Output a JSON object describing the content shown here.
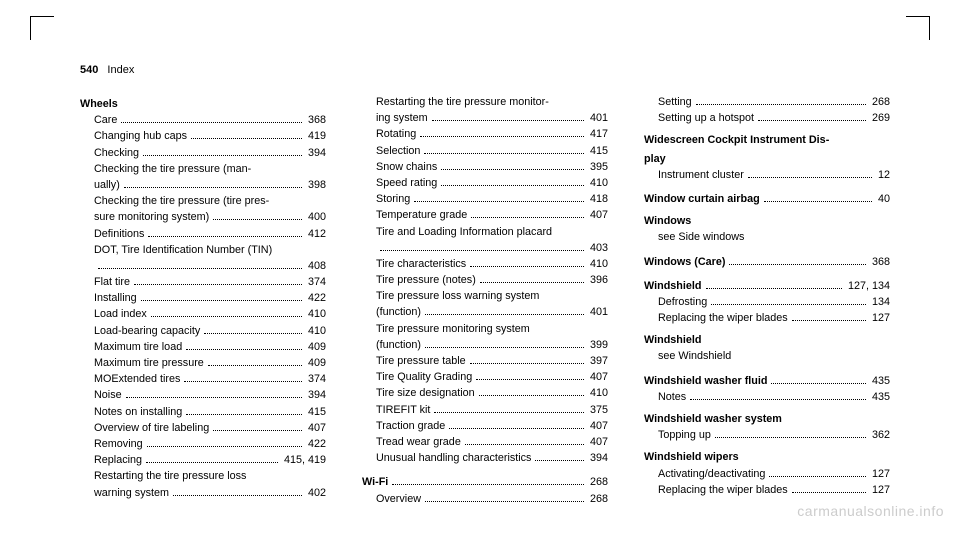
{
  "header": {
    "pagenum": "540",
    "section": "Index"
  },
  "watermark": "carmanualsonline.info",
  "col1": [
    {
      "type": "heading",
      "text": "Wheels"
    },
    {
      "type": "entry",
      "label": "Care",
      "page": "368"
    },
    {
      "type": "entry",
      "label": "Changing hub caps",
      "page": "419"
    },
    {
      "type": "entry",
      "label": "Checking",
      "page": "394"
    },
    {
      "type": "wrap2",
      "l1": "Checking the tire pressure (man-",
      "l2": "ually)",
      "page": "398"
    },
    {
      "type": "wrap2",
      "l1": "Checking the tire pressure (tire pres-",
      "l2": "sure monitoring system)",
      "page": "400"
    },
    {
      "type": "entry",
      "label": "Definitions",
      "page": "412"
    },
    {
      "type": "wrap2",
      "l1": "DOT, Tire Identification Number (TIN)",
      "l2": "",
      "page": "408"
    },
    {
      "type": "entry",
      "label": "Flat tire",
      "page": "374"
    },
    {
      "type": "entry",
      "label": "Installing",
      "page": "422"
    },
    {
      "type": "entry",
      "label": "Load index",
      "page": "410"
    },
    {
      "type": "entry",
      "label": "Load-bearing capacity",
      "page": "410"
    },
    {
      "type": "entry",
      "label": "Maximum tire load",
      "page": "409"
    },
    {
      "type": "entry",
      "label": "Maximum tire pressure",
      "page": "409"
    },
    {
      "type": "entry",
      "label": "MOExtended tires",
      "page": "374"
    },
    {
      "type": "entry",
      "label": "Noise",
      "page": "394"
    },
    {
      "type": "entry",
      "label": "Notes on installing",
      "page": "415"
    },
    {
      "type": "entry",
      "label": "Overview of tire labeling",
      "page": "407"
    },
    {
      "type": "entry",
      "label": "Removing",
      "page": "422"
    },
    {
      "type": "entry",
      "label": "Replacing",
      "page": "415, 419"
    },
    {
      "type": "wrap2",
      "l1": "Restarting the tire pressure loss",
      "l2": "warning system",
      "page": "402"
    }
  ],
  "col2": [
    {
      "type": "wrap2top",
      "l1": "Restarting the tire pressure monitor-",
      "l2": "ing system",
      "page": "401"
    },
    {
      "type": "entry",
      "label": "Rotating",
      "page": "417"
    },
    {
      "type": "entry",
      "label": "Selection",
      "page": "415"
    },
    {
      "type": "entry",
      "label": "Snow chains",
      "page": "395"
    },
    {
      "type": "entry",
      "label": "Speed rating",
      "page": "410"
    },
    {
      "type": "entry",
      "label": "Storing",
      "page": "418"
    },
    {
      "type": "entry",
      "label": "Temperature grade",
      "page": "407"
    },
    {
      "type": "wrap2",
      "l1": "Tire and Loading Information placard",
      "l2": "",
      "page": "403"
    },
    {
      "type": "entry",
      "label": "Tire characteristics",
      "page": "410"
    },
    {
      "type": "entry",
      "label": "Tire pressure (notes)",
      "page": "396"
    },
    {
      "type": "wrap2",
      "l1": "Tire pressure loss warning system",
      "l2": "(function)",
      "page": "401"
    },
    {
      "type": "wrap2",
      "l1": "Tire pressure monitoring system",
      "l2": "(function)",
      "page": "399"
    },
    {
      "type": "entry",
      "label": "Tire pressure table",
      "page": "397"
    },
    {
      "type": "entry",
      "label": "Tire Quality Grading",
      "page": "407"
    },
    {
      "type": "entry",
      "label": "Tire size designation",
      "page": "410"
    },
    {
      "type": "entry",
      "label": "TIREFIT kit",
      "page": "375"
    },
    {
      "type": "entry",
      "label": "Traction grade",
      "page": "407"
    },
    {
      "type": "entry",
      "label": "Tread wear grade",
      "page": "407"
    },
    {
      "type": "entry",
      "label": "Unusual handling characteristics",
      "page": "394"
    },
    {
      "type": "heading-entry",
      "label": "Wi-Fi",
      "page": "268"
    },
    {
      "type": "entry",
      "label": "Overview",
      "page": "268"
    }
  ],
  "col3": [
    {
      "type": "entry-top",
      "label": "Setting",
      "page": "268"
    },
    {
      "type": "entry",
      "label": "Setting up a hotspot",
      "page": "269"
    },
    {
      "type": "heading-wrap",
      "l1": "Widescreen Cockpit Instrument Dis-",
      "l2": "play"
    },
    {
      "type": "entry",
      "label": "Instrument cluster",
      "page": "12"
    },
    {
      "type": "heading-entry",
      "label": "Window curtain airbag",
      "page": "40"
    },
    {
      "type": "heading",
      "text": "Windows"
    },
    {
      "type": "see",
      "text": "see Side windows"
    },
    {
      "type": "heading-entry",
      "label": "Windows (Care)",
      "page": "368"
    },
    {
      "type": "heading-entry",
      "label": "Windshield",
      "page": "127, 134"
    },
    {
      "type": "entry",
      "label": "Defrosting",
      "page": "134"
    },
    {
      "type": "entry",
      "label": "Replacing the wiper blades",
      "page": "127"
    },
    {
      "type": "heading",
      "text": "Windshield"
    },
    {
      "type": "see",
      "text": "see Windshield"
    },
    {
      "type": "heading-entry",
      "label": "Windshield washer fluid",
      "page": "435"
    },
    {
      "type": "entry",
      "label": "Notes",
      "page": "435"
    },
    {
      "type": "heading",
      "text": "Windshield washer system"
    },
    {
      "type": "entry",
      "label": "Topping up",
      "page": "362"
    },
    {
      "type": "heading",
      "text": "Windshield wipers"
    },
    {
      "type": "entry",
      "label": "Activating/deactivating",
      "page": "127"
    },
    {
      "type": "entry",
      "label": "Replacing the wiper blades",
      "page": "127"
    }
  ]
}
